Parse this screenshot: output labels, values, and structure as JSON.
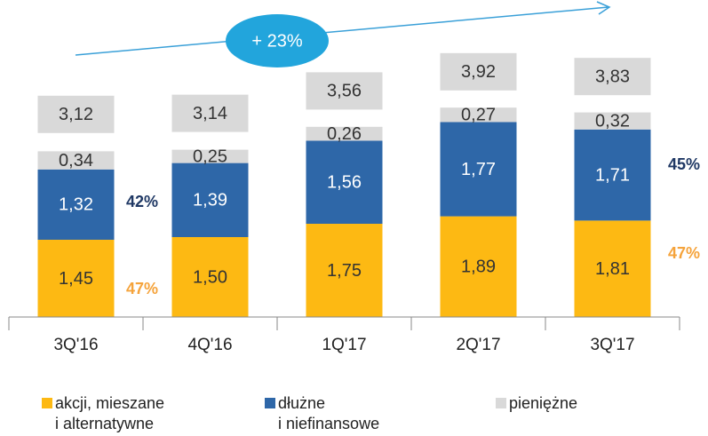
{
  "chart_data": {
    "type": "stacked_bar",
    "categories": [
      "3Q'16",
      "4Q'16",
      "1Q'17",
      "2Q'17",
      "3Q'17"
    ],
    "series": [
      {
        "name": "akcji, mieszane\ni alternatywne",
        "color": "#fdb913",
        "values": [
          1.45,
          1.5,
          1.75,
          1.89,
          1.81
        ],
        "value_labels": [
          "1,45",
          "1,50",
          "1,75",
          "1,89",
          "1,81"
        ]
      },
      {
        "name": "dłużne\ni niefinansowe",
        "color": "#2e67a8",
        "values": [
          1.32,
          1.39,
          1.56,
          1.77,
          1.71
        ],
        "value_labels": [
          "1,32",
          "1,39",
          "1,56",
          "1,77",
          "1,71"
        ]
      },
      {
        "name": "pieniężne",
        "color": "#d9d9d9",
        "values": [
          0.34,
          0.25,
          0.26,
          0.27,
          0.32
        ],
        "value_labels": [
          "0,34",
          "0,25",
          "0,26",
          "0,27",
          "0,32"
        ]
      }
    ],
    "totals": {
      "values": [
        3.12,
        3.14,
        3.56,
        3.92,
        3.83
      ],
      "value_labels": [
        "3,12",
        "3,14",
        "3,56",
        "3,92",
        "3,83"
      ]
    },
    "ylim": [
      0,
      4.5
    ],
    "annotations": [
      "+ 23%",
      "42%",
      "47%",
      "45%",
      "47%"
    ]
  }
}
